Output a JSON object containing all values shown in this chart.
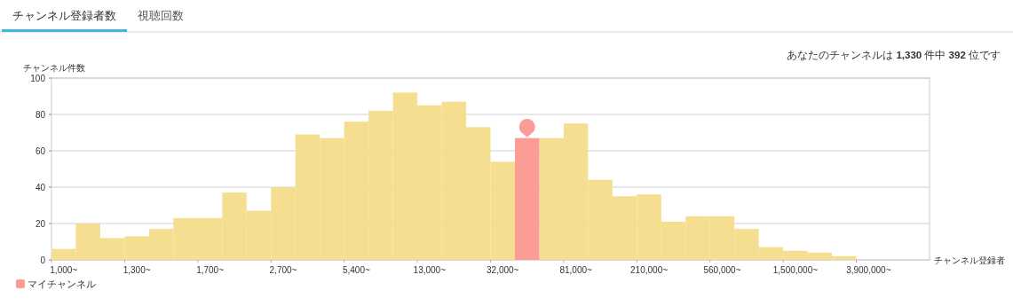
{
  "chart_data": {
    "type": "bar",
    "annotations": [
      "チャンネル登録者数",
      "視聴回数",
      "あなたのチャンネルは 1,330 件中 392 位です"
    ],
    "xlabel": "チャンネル登録者",
    "ylabel": "チャンネル件数",
    "categories": [
      "1,000~",
      null,
      null,
      "1,300~",
      null,
      null,
      "1,700~",
      null,
      null,
      "2,700~",
      null,
      null,
      "5,400~",
      null,
      null,
      "13,000~",
      null,
      null,
      "32,000~",
      null,
      null,
      "81,000~",
      null,
      null,
      "210,000~",
      null,
      null,
      "560,000~",
      null,
      null,
      "1,500,000~",
      null,
      null,
      "3,900,000~",
      null,
      null
    ],
    "series": [
      {
        "color": "#f5de90",
        "values": [
          6,
          20,
          12,
          13,
          17,
          23,
          23,
          37,
          27,
          40,
          69,
          67,
          76,
          82,
          92,
          85,
          87,
          73,
          54,
          null,
          67,
          75,
          44,
          35,
          36,
          21,
          24,
          24,
          17,
          7,
          5,
          4,
          2,
          0,
          0,
          0
        ]
      },
      {
        "name": "マイチャンネル",
        "color": "#fb9d94",
        "values": [
          null,
          null,
          null,
          null,
          null,
          null,
          null,
          null,
          null,
          null,
          null,
          null,
          null,
          null,
          null,
          null,
          null,
          null,
          null,
          67,
          null,
          null,
          null,
          null,
          null,
          null,
          null,
          null,
          null,
          null,
          null,
          null,
          null,
          null,
          null,
          null
        ]
      }
    ],
    "ylim": [
      0,
      100
    ],
    "yticks": [
      0,
      20,
      40,
      60,
      80,
      100
    ],
    "grid": "y",
    "legend": "bottom left"
  }
}
